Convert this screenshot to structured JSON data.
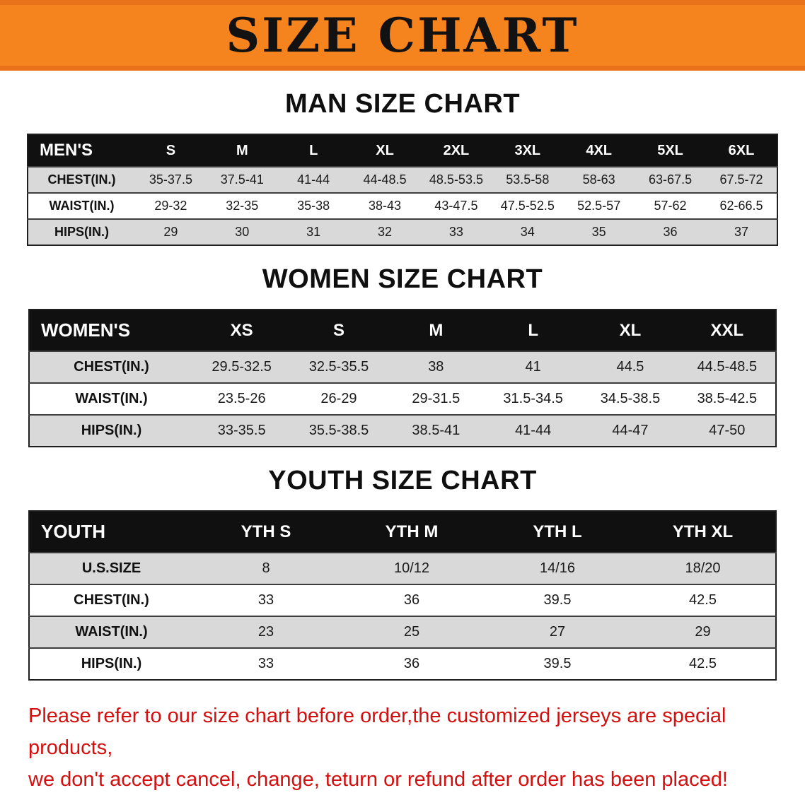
{
  "banner": {
    "title": "SIZE CHART"
  },
  "colors": {
    "banner_orange": "#f5831e",
    "table_header_black": "#101010",
    "row_gray": "#d9d9d9",
    "disclaimer_red": "#d40f0f"
  },
  "sections": [
    {
      "heading": "MAN SIZE CHART",
      "table": {
        "header": [
          "MEN'S",
          "S",
          "M",
          "L",
          "XL",
          "2XL",
          "3XL",
          "4XL",
          "5XL",
          "6XL"
        ],
        "rows": [
          [
            "CHEST(IN.)",
            "35-37.5",
            "37.5-41",
            "41-44",
            "44-48.5",
            "48.5-53.5",
            "53.5-58",
            "58-63",
            "63-67.5",
            "67.5-72"
          ],
          [
            "WAIST(IN.)",
            "29-32",
            "32-35",
            "35-38",
            "38-43",
            "43-47.5",
            "47.5-52.5",
            "52.5-57",
            "57-62",
            "62-66.5"
          ],
          [
            "HIPS(IN.)",
            "29",
            "30",
            "31",
            "32",
            "33",
            "34",
            "35",
            "36",
            "37"
          ]
        ]
      }
    },
    {
      "heading": "WOMEN SIZE CHART",
      "table": {
        "header": [
          "WOMEN'S",
          "XS",
          "S",
          "M",
          "L",
          "XL",
          "XXL"
        ],
        "rows": [
          [
            "CHEST(IN.)",
            "29.5-32.5",
            "32.5-35.5",
            "38",
            "41",
            "44.5",
            "44.5-48.5"
          ],
          [
            "WAIST(IN.)",
            "23.5-26",
            "26-29",
            "29-31.5",
            "31.5-34.5",
            "34.5-38.5",
            "38.5-42.5"
          ],
          [
            "HIPS(IN.)",
            "33-35.5",
            "35.5-38.5",
            "38.5-41",
            "41-44",
            "44-47",
            "47-50"
          ]
        ]
      }
    },
    {
      "heading": "YOUTH SIZE CHART",
      "table": {
        "header": [
          "YOUTH",
          "YTH S",
          "YTH M",
          "YTH L",
          "YTH XL"
        ],
        "rows": [
          [
            "U.S.SIZE",
            "8",
            "10/12",
            "14/16",
            "18/20"
          ],
          [
            "CHEST(IN.)",
            "33",
            "36",
            "39.5",
            "42.5"
          ],
          [
            "WAIST(IN.)",
            "23",
            "25",
            "27",
            "29"
          ],
          [
            "HIPS(IN.)",
            "33",
            "36",
            "39.5",
            "42.5"
          ]
        ]
      }
    }
  ],
  "footer": {
    "lines": [
      "Please refer to our size chart before order,the customized jerseys are special products,",
      "we don't accept cancel, change, teturn or refund after order has been placed!"
    ]
  }
}
